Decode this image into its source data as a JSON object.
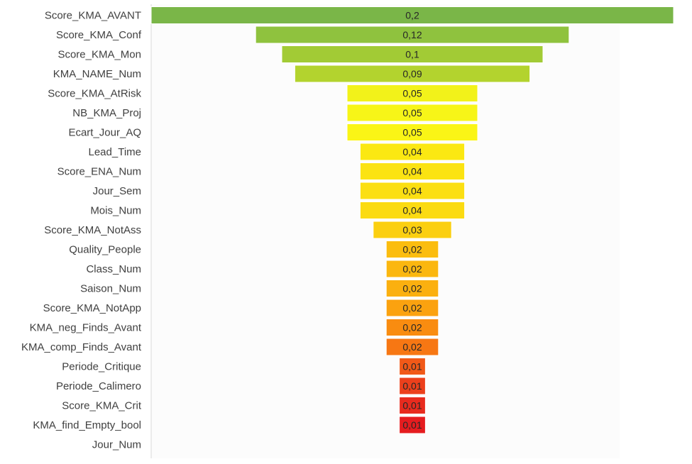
{
  "chart_data": {
    "type": "bar",
    "orientation": "horizontal",
    "style": "funnel-centered",
    "title": "",
    "xlabel": "",
    "ylabel": "",
    "xlim": [
      0,
      0.2
    ],
    "grid": false,
    "legend": "none",
    "categories": [
      "Score_KMA_AVANT",
      "Score_KMA_Conf",
      "Score_KMA_Mon",
      "KMA_NAME_Num",
      "Score_KMA_AtRisk",
      "NB_KMA_Proj",
      "Ecart_Jour_AQ",
      "Lead_Time",
      "Score_ENA_Num",
      "Jour_Sem",
      "Mois_Num",
      "Score_KMA_NotAss",
      "Quality_People",
      "Class_Num",
      "Saison_Num",
      "Score_KMA_NotApp",
      "KMA_neg_Finds_Avant",
      "KMA_comp_Finds_Avant",
      "Periode_Critique",
      "Periode_Calimero",
      "Score_KMA_Crit",
      "KMA_find_Empty_bool",
      "Jour_Num"
    ],
    "values": [
      0.2,
      0.12,
      0.1,
      0.09,
      0.05,
      0.05,
      0.05,
      0.04,
      0.04,
      0.04,
      0.04,
      0.03,
      0.02,
      0.02,
      0.02,
      0.02,
      0.02,
      0.02,
      0.01,
      0.01,
      0.01,
      0.01,
      null
    ],
    "value_labels": [
      "0,2",
      "0,12",
      "0,1",
      "0,09",
      "0,05",
      "0,05",
      "0,05",
      "0,04",
      "0,04",
      "0,04",
      "0,04",
      "0,03",
      "0,02",
      "0,02",
      "0,02",
      "0,02",
      "0,02",
      "0,02",
      "0,01",
      "0,01",
      "0,01",
      "0,01",
      ""
    ],
    "colors": [
      "#7ab648",
      "#8fc23e",
      "#a2cb35",
      "#b3d32e",
      "#f2f21a",
      "#f7f518",
      "#faf516",
      "#fbe812",
      "#fbe312",
      "#fbdf12",
      "#fbdb12",
      "#fbcf10",
      "#fbbd0f",
      "#fbb70f",
      "#fbb00f",
      "#fba20f",
      "#f98c10",
      "#f77713",
      "#f15918",
      "#ec401c",
      "#e82b1e",
      "#e51c1f",
      "#ffffff"
    ]
  }
}
